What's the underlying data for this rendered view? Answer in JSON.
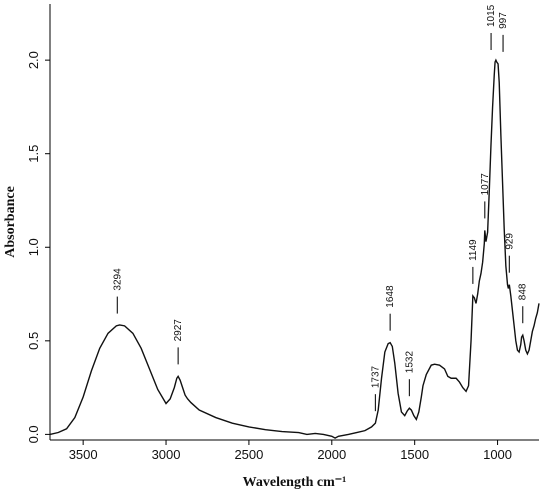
{
  "chart_data": {
    "type": "line",
    "title": "",
    "xlabel": "Wavelength cm⁻¹",
    "ylabel": "Absorbance",
    "xlim": [
      3700,
      750
    ],
    "ylim": [
      -0.03,
      2.3
    ],
    "x_reversed": true,
    "grid": false,
    "x_ticks": [
      3500,
      3000,
      2500,
      2000,
      1500,
      1000
    ],
    "x_tick_labels": [
      "3500",
      "3000",
      "2500",
      "2000",
      "1500",
      "1000"
    ],
    "y_ticks": [
      0.0,
      0.5,
      1.0,
      1.5,
      2.0
    ],
    "y_tick_labels": [
      "0.0",
      "0.5",
      "1.0",
      "1.5",
      "2.0"
    ],
    "series": [
      {
        "x": [
          3700,
          3650,
          3600,
          3550,
          3500,
          3450,
          3400,
          3350,
          3300,
          3280,
          3250,
          3200,
          3150,
          3100,
          3050,
          3000,
          2975,
          2950,
          2935,
          2927,
          2915,
          2900,
          2885,
          2870,
          2850,
          2800,
          2700,
          2600,
          2500,
          2400,
          2300,
          2200,
          2150,
          2100,
          2050,
          2000,
          1980,
          1960,
          1900,
          1850,
          1800,
          1760,
          1737,
          1720,
          1700,
          1680,
          1660,
          1648,
          1635,
          1620,
          1600,
          1580,
          1560,
          1545,
          1532,
          1520,
          1505,
          1490,
          1475,
          1460,
          1450,
          1430,
          1400,
          1380,
          1350,
          1320,
          1300,
          1280,
          1250,
          1230,
          1210,
          1190,
          1175,
          1160,
          1149,
          1140,
          1130,
          1120,
          1110,
          1100,
          1090,
          1080,
          1077,
          1070,
          1060,
          1050,
          1040,
          1030,
          1020,
          1015,
          1010,
          1005,
          997,
          990,
          980,
          970,
          960,
          950,
          940,
          935,
          929,
          920,
          910,
          900,
          890,
          880,
          870,
          860,
          855,
          848,
          840,
          830,
          820,
          810,
          800,
          790,
          780,
          770,
          760,
          750
        ],
        "y": [
          0.0,
          0.01,
          0.03,
          0.09,
          0.2,
          0.34,
          0.46,
          0.54,
          0.58,
          0.585,
          0.58,
          0.54,
          0.46,
          0.35,
          0.24,
          0.165,
          0.19,
          0.25,
          0.3,
          0.31,
          0.29,
          0.25,
          0.21,
          0.19,
          0.17,
          0.13,
          0.09,
          0.06,
          0.04,
          0.025,
          0.015,
          0.01,
          0.0,
          0.005,
          0.0,
          -0.01,
          -0.02,
          -0.01,
          0.0,
          0.01,
          0.02,
          0.04,
          0.06,
          0.13,
          0.3,
          0.44,
          0.485,
          0.49,
          0.47,
          0.38,
          0.22,
          0.12,
          0.1,
          0.125,
          0.14,
          0.13,
          0.1,
          0.08,
          0.12,
          0.2,
          0.26,
          0.32,
          0.37,
          0.375,
          0.37,
          0.35,
          0.31,
          0.3,
          0.3,
          0.28,
          0.25,
          0.23,
          0.26,
          0.5,
          0.74,
          0.73,
          0.7,
          0.75,
          0.82,
          0.86,
          0.92,
          1.02,
          1.09,
          1.03,
          1.08,
          1.3,
          1.54,
          1.75,
          1.92,
          1.99,
          2.0,
          1.99,
          1.98,
          1.88,
          1.6,
          1.35,
          1.1,
          0.9,
          0.8,
          0.78,
          0.8,
          0.74,
          0.66,
          0.58,
          0.5,
          0.45,
          0.44,
          0.48,
          0.52,
          0.53,
          0.5,
          0.45,
          0.43,
          0.45,
          0.5,
          0.55,
          0.58,
          0.62,
          0.65,
          0.7
        ]
      }
    ],
    "annotations": [
      {
        "label": "3294",
        "x": 3294
      },
      {
        "label": "2927",
        "x": 2927
      },
      {
        "label": "1737",
        "x": 1737
      },
      {
        "label": "1648",
        "x": 1648
      },
      {
        "label": "1532",
        "x": 1532
      },
      {
        "label": "1149",
        "x": 1149
      },
      {
        "label": "1077",
        "x": 1077
      },
      {
        "label": "1015",
        "x": 1015
      },
      {
        "label": "997",
        "x": 997
      },
      {
        "label": "929",
        "x": 929
      },
      {
        "label": "848",
        "x": 848
      }
    ]
  }
}
